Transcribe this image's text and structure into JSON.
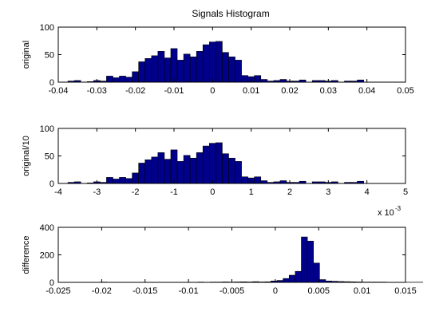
{
  "figure": {
    "title": "Signals Histogram"
  },
  "chart_data": [
    {
      "type": "bar",
      "name": "original",
      "ylabel": "original",
      "xlim": [
        -0.04,
        0.05
      ],
      "ylim": [
        0,
        100
      ],
      "xticks": [
        -0.04,
        -0.03,
        -0.02,
        -0.01,
        0,
        0.01,
        0.02,
        0.03,
        0.04,
        0.05
      ],
      "xtick_labels": [
        "-0.04",
        "-0.03",
        "-0.02",
        "-0.01",
        "0",
        "0.01",
        "0.02",
        "0.03",
        "0.04",
        "0.05"
      ],
      "yticks": [
        0,
        50,
        100
      ],
      "ytick_labels": [
        "0",
        "50",
        "100"
      ],
      "bin_start": -0.0375,
      "bin_width": 0.0016667,
      "counts": [
        2,
        3,
        0,
        1,
        3,
        2,
        11,
        8,
        11,
        9,
        19,
        37,
        43,
        48,
        56,
        44,
        61,
        40,
        51,
        46,
        56,
        68,
        73,
        74,
        54,
        46,
        40,
        12,
        10,
        12,
        5,
        2,
        3,
        5,
        2,
        2,
        4,
        0,
        3,
        3,
        2,
        3,
        0,
        2,
        2,
        4,
        0
      ],
      "bar_color": "#00008b",
      "edge_color": "#000000"
    },
    {
      "type": "bar",
      "name": "original/10",
      "ylabel": "original/10",
      "xlim": [
        -4,
        5
      ],
      "ylim": [
        0,
        100
      ],
      "xticks": [
        -4,
        -3,
        -2,
        -1,
        0,
        1,
        2,
        3,
        4,
        5
      ],
      "xtick_labels": [
        "-4",
        "-3",
        "-2",
        "-1",
        "0",
        "1",
        "2",
        "3",
        "4",
        "5"
      ],
      "yticks": [
        0,
        50,
        100
      ],
      "ytick_labels": [
        "0",
        "50",
        "100"
      ],
      "x_multiplier_base": "x 10",
      "x_multiplier_exp": "-3",
      "bin_start": -3.75,
      "bin_width": 0.16667,
      "counts": [
        2,
        3,
        0,
        1,
        3,
        2,
        11,
        8,
        11,
        9,
        19,
        37,
        43,
        48,
        56,
        44,
        61,
        40,
        51,
        46,
        56,
        68,
        73,
        74,
        54,
        46,
        40,
        12,
        10,
        12,
        5,
        2,
        3,
        5,
        2,
        2,
        4,
        0,
        3,
        3,
        2,
        3,
        0,
        2,
        2,
        4,
        0
      ],
      "bar_color": "#00008b",
      "edge_color": "#000000"
    },
    {
      "type": "bar",
      "name": "difference",
      "ylabel": "difference",
      "xlim": [
        -0.025,
        0.015
      ],
      "ylim": [
        0,
        400
      ],
      "xticks": [
        -0.025,
        -0.02,
        -0.015,
        -0.01,
        -0.005,
        0,
        0.005,
        0.01,
        0.015
      ],
      "xtick_labels": [
        "-0.025",
        "-0.02",
        "-0.015",
        "-0.01",
        "-0.005",
        "0",
        "0.005",
        "0.01",
        "0.015"
      ],
      "yticks": [
        0,
        200,
        400
      ],
      "ytick_labels": [
        "0",
        "200",
        "400"
      ],
      "bin_start": -0.0215,
      "bin_width": 0.0007,
      "counts": [
        1,
        0,
        2,
        0,
        0,
        0,
        0,
        0,
        0,
        0,
        0,
        0,
        0,
        0,
        0,
        0,
        1,
        1,
        2,
        1,
        2,
        2,
        3,
        2,
        3,
        4,
        3,
        5,
        3,
        4,
        10,
        14,
        28,
        52,
        80,
        330,
        300,
        140,
        20,
        10,
        8,
        6,
        5,
        4,
        3,
        2,
        2,
        2,
        2,
        1,
        1,
        1,
        1,
        1,
        1
      ]
    }
  ]
}
